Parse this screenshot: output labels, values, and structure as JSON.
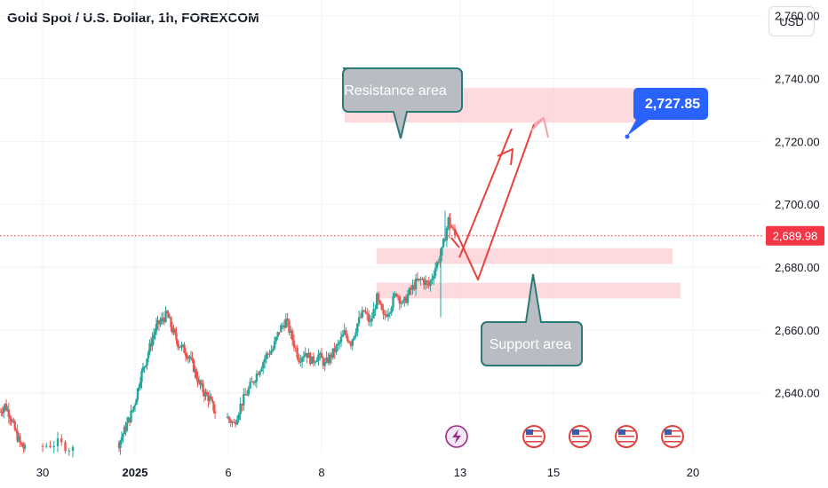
{
  "header": {
    "title": "Gold Spot / U.S. Dollar, 1h, FOREXCOM"
  },
  "toolbar": {
    "currency_label": "USD"
  },
  "colors": {
    "up": "#26a69a",
    "down": "#ef5350",
    "zone_fill": "#fbd3d8",
    "callout_fill": "#b9bcc2",
    "callout_border": "#2b7a78",
    "arrow": "#e8413f",
    "target_badge": "#2962ff",
    "last_price_badge": "#f23645"
  },
  "annotations": {
    "resistance_label": "Resistance area",
    "support_label": "Support area",
    "target_label": "2,727.85",
    "last_price_label": "2,689.98"
  },
  "events": [
    {
      "icon": "lightning-icon",
      "date": "Jan 13"
    },
    {
      "icon": "us-flag-icon",
      "date": "Jan 14"
    },
    {
      "icon": "us-flag-icon",
      "date": "Jan 15"
    },
    {
      "icon": "us-flag-icon",
      "date": "Jan 16"
    },
    {
      "icon": "us-flag-icon",
      "date": "Jan 17"
    }
  ],
  "chart_data": {
    "type": "candlestick",
    "title": "Gold Spot / U.S. Dollar, 1h, FOREXCOM",
    "x_tick_labels": [
      "30",
      "2025",
      "6",
      "8",
      "13",
      "15",
      "20"
    ],
    "y_tick_labels": [
      "2,640.00",
      "2,660.00",
      "2,680.00",
      "2,700.00",
      "2,720.00",
      "2,740.00",
      "2,760.00"
    ],
    "ylim": [
      2621,
      2765
    ],
    "last_price": 2689.98,
    "target_price": 2727.85,
    "resistance_zone": [
      2726,
      2737
    ],
    "support_zones": [
      [
        2681,
        2686
      ],
      [
        2670,
        2675
      ]
    ],
    "projected_path": [
      2692,
      2676,
      2726
    ],
    "projected_path_alt": 2732,
    "series": [
      {
        "segment": "dec-30",
        "points": [
          2634,
          2636,
          2633,
          2628,
          2624,
          2622
        ]
      },
      {
        "segment": "dec-31",
        "points": [
          2623,
          2624,
          2622
        ]
      },
      {
        "segment": "jan-02-03",
        "points": [
          2624,
          2628,
          2632,
          2637,
          2645,
          2650,
          2656,
          2661,
          2663,
          2665,
          2660,
          2656,
          2654,
          2652,
          2648,
          2643,
          2640,
          2638,
          2634
        ]
      },
      {
        "segment": "jan-06-07",
        "points": [
          2632,
          2630,
          2636,
          2640,
          2644,
          2648,
          2652,
          2654,
          2660,
          2663,
          2657,
          2651,
          2653,
          2650,
          2652,
          2649,
          2652,
          2655,
          2659,
          2656,
          2662,
          2666,
          2662,
          2670,
          2664,
          2667,
          2672,
          2668,
          2672,
          2675,
          2676,
          2674,
          2680,
          2685,
          2695,
          2690
        ]
      }
    ]
  }
}
